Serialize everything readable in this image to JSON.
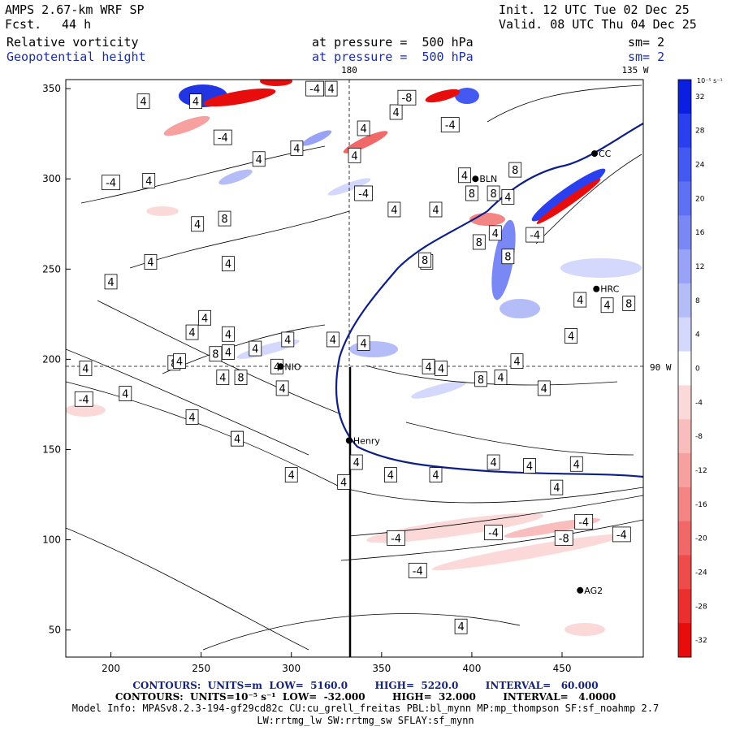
{
  "header": {
    "model": "AMPS 2.67-km WRF SP",
    "forecast_label": "Fcst.",
    "forecast_hours": "44 h",
    "init": "Init. 12 UTC Tue 02 Dec 25",
    "valid": "Valid. 08 UTC Thu 04 Dec 25",
    "field1_name": "Relative vorticity",
    "field1_level": "at pressure =  500 hPa",
    "field1_sm": "sm= 2",
    "field2_name": "Geopotential height",
    "field2_level": "at pressure =  500 hPa",
    "field2_sm": "sm= 2"
  },
  "map": {
    "meridian_labels": [
      "180",
      "135 W"
    ],
    "parallel_label": "90 W",
    "x_ticks": [
      "200",
      "250",
      "300",
      "350",
      "400",
      "450"
    ],
    "y_ticks": [
      "350",
      "300",
      "250",
      "200",
      "150",
      "100",
      "50"
    ],
    "x_range": [
      175,
      495
    ],
    "y_range": [
      35,
      355
    ],
    "stations": [
      {
        "name": "Henry",
        "x": 332,
        "y": 155
      },
      {
        "name": "AG2",
        "x": 460,
        "y": 72
      },
      {
        "name": "HRC",
        "x": 469,
        "y": 239
      },
      {
        "name": "NIO",
        "x": 294,
        "y": 196
      },
      {
        "name": "BLN",
        "x": 402,
        "y": 300
      },
      {
        "name": "CC",
        "x": 468,
        "y": 314
      }
    ],
    "contour_labels": [
      {
        "t": "4",
        "x": 218,
        "y": 343
      },
      {
        "t": "4",
        "x": 221,
        "y": 299
      },
      {
        "t": "-4",
        "x": 200,
        "y": 298
      },
      {
        "t": "4",
        "x": 208,
        "y": 181
      },
      {
        "t": "-4",
        "x": 185,
        "y": 178
      },
      {
        "t": "4",
        "x": 186,
        "y": 195
      },
      {
        "t": "4",
        "x": 222,
        "y": 254
      },
      {
        "t": "4",
        "x": 200,
        "y": 243
      },
      {
        "t": "8",
        "x": 235,
        "y": 198
      },
      {
        "t": "8",
        "x": 258,
        "y": 203
      },
      {
        "t": "4",
        "x": 238,
        "y": 199
      },
      {
        "t": "4",
        "x": 262,
        "y": 190
      },
      {
        "t": "8",
        "x": 272,
        "y": 190
      },
      {
        "t": "4",
        "x": 245,
        "y": 168
      },
      {
        "t": "4",
        "x": 270,
        "y": 156
      },
      {
        "t": "4",
        "x": 295,
        "y": 184
      },
      {
        "t": "4",
        "x": 292,
        "y": 196
      },
      {
        "t": "4",
        "x": 265,
        "y": 204
      },
      {
        "t": "4",
        "x": 280,
        "y": 206
      },
      {
        "t": "4",
        "x": 298,
        "y": 211
      },
      {
        "t": "4",
        "x": 323,
        "y": 211
      },
      {
        "t": "4",
        "x": 265,
        "y": 214
      },
      {
        "t": "4",
        "x": 245,
        "y": 215
      },
      {
        "t": "4",
        "x": 252,
        "y": 223
      },
      {
        "t": "4",
        "x": 265,
        "y": 253
      },
      {
        "t": "8",
        "x": 263,
        "y": 278
      },
      {
        "t": "4",
        "x": 248,
        "y": 275
      },
      {
        "t": "-4",
        "x": 262,
        "y": 323
      },
      {
        "t": "4",
        "x": 282,
        "y": 311
      },
      {
        "t": "4",
        "x": 303,
        "y": 317
      },
      {
        "t": "4",
        "x": 335,
        "y": 313
      },
      {
        "t": "4",
        "x": 340,
        "y": 328
      },
      {
        "t": "4",
        "x": 358,
        "y": 337
      },
      {
        "t": "-4",
        "x": 340,
        "y": 292
      },
      {
        "t": "4",
        "x": 357,
        "y": 283
      },
      {
        "t": "4",
        "x": 380,
        "y": 283
      },
      {
        "t": "-4",
        "x": 388,
        "y": 330
      },
      {
        "t": "-8",
        "x": 364,
        "y": 345
      },
      {
        "t": "4",
        "x": 322,
        "y": 350
      },
      {
        "t": "4",
        "x": 247,
        "y": 343
      },
      {
        "t": "-4",
        "x": 313,
        "y": 350
      },
      {
        "t": "4",
        "x": 375,
        "y": 254
      },
      {
        "t": "8",
        "x": 374,
        "y": 255
      },
      {
        "t": "4",
        "x": 396,
        "y": 302
      },
      {
        "t": "8",
        "x": 400,
        "y": 292
      },
      {
        "t": "8",
        "x": 412,
        "y": 292
      },
      {
        "t": "4",
        "x": 413,
        "y": 270
      },
      {
        "t": "8",
        "x": 404,
        "y": 265
      },
      {
        "t": "8",
        "x": 420,
        "y": 257
      },
      {
        "t": "-4",
        "x": 435,
        "y": 269
      },
      {
        "t": "4",
        "x": 420,
        "y": 290
      },
      {
        "t": "8",
        "x": 424,
        "y": 305
      },
      {
        "t": "4",
        "x": 383,
        "y": 195
      },
      {
        "t": "8",
        "x": 405,
        "y": 189
      },
      {
        "t": "4",
        "x": 416,
        "y": 190
      },
      {
        "t": "4",
        "x": 425,
        "y": 199
      },
      {
        "t": "4",
        "x": 440,
        "y": 184
      },
      {
        "t": "4",
        "x": 455,
        "y": 213
      },
      {
        "t": "4",
        "x": 460,
        "y": 233
      },
      {
        "t": "4",
        "x": 475,
        "y": 230
      },
      {
        "t": "8",
        "x": 487,
        "y": 231
      },
      {
        "t": "4",
        "x": 458,
        "y": 142
      },
      {
        "t": "4",
        "x": 432,
        "y": 141
      },
      {
        "t": "4",
        "x": 447,
        "y": 129
      },
      {
        "t": "4",
        "x": 412,
        "y": 143
      },
      {
        "t": "4",
        "x": 380,
        "y": 136
      },
      {
        "t": "4",
        "x": 355,
        "y": 136
      },
      {
        "t": "4",
        "x": 336,
        "y": 143
      },
      {
        "t": "4",
        "x": 329,
        "y": 132
      },
      {
        "t": "4",
        "x": 300,
        "y": 136
      },
      {
        "t": "4",
        "x": 270,
        "y": 156
      },
      {
        "t": "4",
        "x": 340,
        "y": 209
      },
      {
        "t": "4",
        "x": 376,
        "y": 196
      },
      {
        "t": "-4",
        "x": 358,
        "y": 101
      },
      {
        "t": "-4",
        "x": 412,
        "y": 104
      },
      {
        "t": "-8",
        "x": 451,
        "y": 101
      },
      {
        "t": "-4",
        "x": 462,
        "y": 110
      },
      {
        "t": "-4",
        "x": 483,
        "y": 103
      },
      {
        "t": "-4",
        "x": 370,
        "y": 83
      },
      {
        "t": "4",
        "x": 394,
        "y": 52
      }
    ]
  },
  "colorbar": {
    "unit": "10⁻⁵ s⁻¹",
    "levels": [
      "32",
      "28",
      "24",
      "20",
      "16",
      "12",
      "8",
      "4",
      "0",
      "-4",
      "-8",
      "-12",
      "-16",
      "-20",
      "-24",
      "-28",
      "-32"
    ],
    "colors": [
      "#0a1fe0",
      "#2a3ff0",
      "#4458f2",
      "#5e70f3",
      "#7a88f5",
      "#98a3f7",
      "#b5bdf9",
      "#d4d8fc",
      "#ffffff",
      "#fcd9d9",
      "#f9bdbd",
      "#f6a0a0",
      "#f38585",
      "#f06868",
      "#ee4b4b",
      "#eb2e2e",
      "#e80d0d"
    ]
  },
  "footer": {
    "line1": "CONTOURS:  UNITS=m  LOW=  5160.0        HIGH=  5220.0        INTERVAL=   60.000",
    "line2": "CONTOURS:  UNITS=10⁻⁵ s⁻¹  LOW=  -32.000        HIGH=  32.000        INTERVAL=   4.0000",
    "line3": "Model Info: MPASv8.2.3-194-gf29cd82c CU:cu_grell_freitas PBL:bl_mynn MP:mp_thompson SF:sf_noahmp 2.7",
    "line4": "LW:rrtmg_lw SW:rrtmg_sw SFLAY:sf_mynn"
  }
}
